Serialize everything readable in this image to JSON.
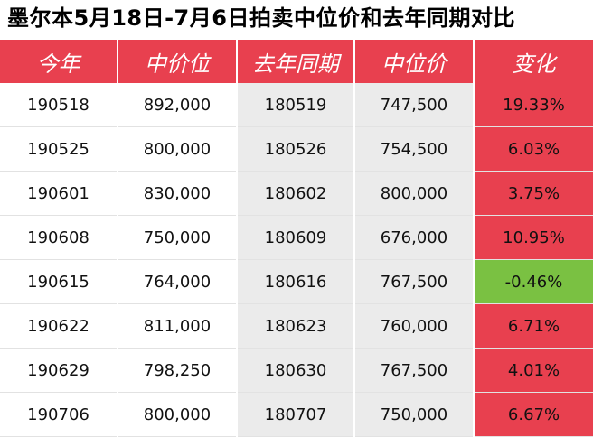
{
  "title": "墨尔本5月18日-7月6日拍卖中位价和去年同期对比",
  "columns": [
    "今年",
    "中价位",
    "去年同期",
    "中位价",
    "变化"
  ],
  "colors": {
    "header": "#e8404f",
    "increase": "#e8404f",
    "decrease": "#7ac142",
    "alt": "#ebebeb"
  },
  "rows": [
    {
      "this_year": "190518",
      "median": "892,000",
      "last_year": "180519",
      "last_median": "747,500",
      "change": "19.33%",
      "trend": "up"
    },
    {
      "this_year": "190525",
      "median": "800,000",
      "last_year": "180526",
      "last_median": "754,500",
      "change": "6.03%",
      "trend": "up"
    },
    {
      "this_year": "190601",
      "median": "830,000",
      "last_year": "180602",
      "last_median": "800,000",
      "change": "3.75%",
      "trend": "up"
    },
    {
      "this_year": "190608",
      "median": "750,000",
      "last_year": "180609",
      "last_median": "676,000",
      "change": "10.95%",
      "trend": "up"
    },
    {
      "this_year": "190615",
      "median": "764,000",
      "last_year": "180616",
      "last_median": "767,500",
      "change": "-0.46%",
      "trend": "down"
    },
    {
      "this_year": "190622",
      "median": "811,000",
      "last_year": "180623",
      "last_median": "760,000",
      "change": "6.71%",
      "trend": "up"
    },
    {
      "this_year": "190629",
      "median": "798,250",
      "last_year": "180630",
      "last_median": "767,500",
      "change": "4.01%",
      "trend": "up"
    },
    {
      "this_year": "190706",
      "median": "800,000",
      "last_year": "180707",
      "last_median": "750,000",
      "change": "6.67%",
      "trend": "up"
    }
  ]
}
